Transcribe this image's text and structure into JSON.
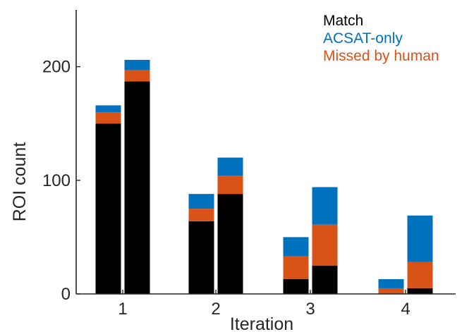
{
  "chart_data": {
    "type": "bar",
    "stacked": true,
    "grouped": true,
    "title": "",
    "xlabel": "Iteration",
    "ylabel": "ROI count",
    "categories": [
      "1",
      "2",
      "3",
      "4"
    ],
    "bars_per_category": 2,
    "ylim": [
      0,
      250
    ],
    "yticks": [
      0,
      100,
      200
    ],
    "grid": false,
    "legend_position": "top-right",
    "series": [
      {
        "name": "Match",
        "color": "#000000",
        "values": [
          [
            150,
            187
          ],
          [
            64,
            88
          ],
          [
            13,
            25
          ],
          [
            0,
            5
          ]
        ]
      },
      {
        "name": "Missed by human",
        "color": "#D95319",
        "values": [
          [
            10,
            10
          ],
          [
            11,
            16
          ],
          [
            20,
            36
          ],
          [
            5,
            23
          ]
        ]
      },
      {
        "name": "ACSAT-only",
        "color": "#0072BD",
        "values": [
          [
            6,
            9
          ],
          [
            13,
            16
          ],
          [
            17,
            33
          ],
          [
            8,
            41
          ]
        ]
      }
    ],
    "legend_order": [
      "Match",
      "ACSAT-only",
      "Missed by human"
    ]
  }
}
